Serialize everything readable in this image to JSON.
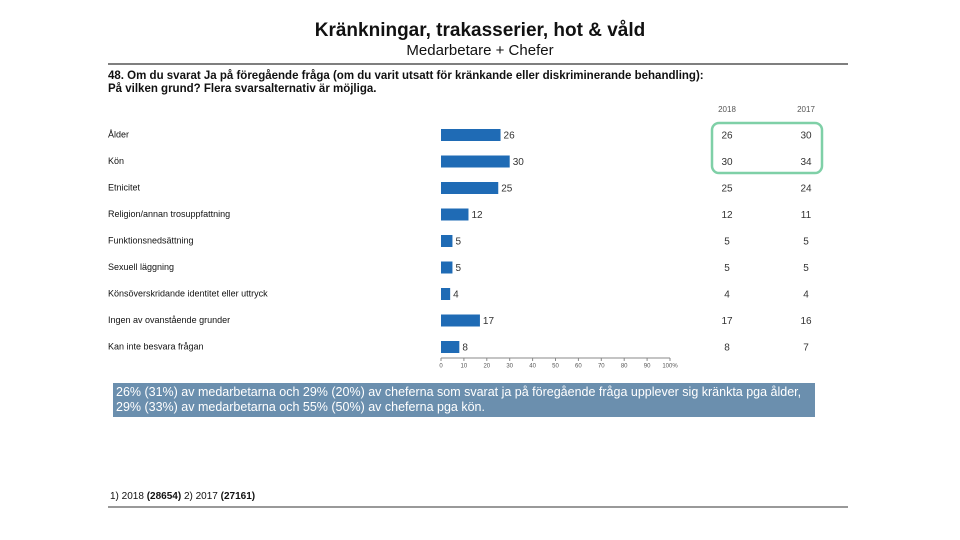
{
  "header": {
    "title": "Kränkningar, trakasserier, hot & våld",
    "subtitle": "Medarbetare + Chefer"
  },
  "question": [
    "48. Om du svarat Ja på föregående fråga (om du varit utsatt för kränkande eller diskriminerande behandling):",
    "På vilken grund? Flera svarsalternativ är möjliga."
  ],
  "chart_data": {
    "type": "hbar",
    "categories": [
      "Ålder",
      "Kön",
      "Etnicitet",
      "Religion/annan trosuppfattning",
      "Funktionsnedsättning",
      "Sexuell läggning",
      "Könsöverskridande identitet eller uttryck",
      "Ingen av ovanstående grunder",
      "Kan inte besvara frågan"
    ],
    "series": [
      {
        "name": "2018",
        "color": "#1f6bb5",
        "values": [
          26,
          30,
          25,
          12,
          5,
          5,
          4,
          17,
          8
        ]
      },
      {
        "name": "2017",
        "values": [
          30,
          34,
          24,
          11,
          5,
          5,
          4,
          16,
          7
        ]
      }
    ],
    "xlim": [
      0,
      100
    ],
    "xticks": [
      0,
      10,
      20,
      30,
      40,
      50,
      60,
      70,
      80,
      90,
      {
        "value": 100,
        "label": "100%"
      }
    ]
  },
  "note": "26% (31%) av medarbetarna och 29% (20%) av cheferna som svarat ja på föregående fråga upplever sig kränkta pga ålder, 29% (33%) av medarbetarna och 55% (50%) av cheferna pga kön.",
  "footer": [
    {
      "label": "1) 2018",
      "count": "(28654)"
    },
    {
      "label": "2) 2017",
      "count": "(27161)"
    }
  ]
}
